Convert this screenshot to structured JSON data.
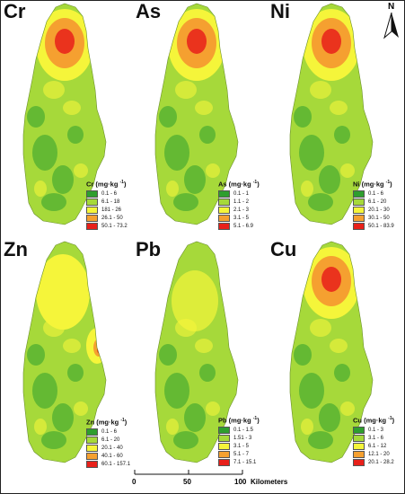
{
  "colors": [
    "#2e9e2e",
    "#a6d93a",
    "#f5f53a",
    "#f5a030",
    "#e8201a"
  ],
  "panels": [
    {
      "element": "Cr",
      "legend_title": "Cr (mg·kg",
      "legend_ranges": [
        "0.1 - 6",
        "6.1 - 18",
        "181 - 26",
        "26.1 - 50",
        "50.1 - 73.2"
      ],
      "hotspot": "north"
    },
    {
      "element": "As",
      "legend_title": "As (mg·kg",
      "legend_ranges": [
        "0.1 - 1",
        "1.1 - 2",
        "2.1 - 3",
        "3.1 - 5",
        "5.1 - 6.9"
      ],
      "hotspot": "north"
    },
    {
      "element": "Ni",
      "legend_title": "Ni (mg·kg",
      "legend_ranges": [
        "0.1 - 6",
        "6.1 - 20",
        "20.1 - 30",
        "30.1 - 50",
        "50.1 - 83.9"
      ],
      "hotspot": "north"
    },
    {
      "element": "Zn",
      "legend_title": "Zn (mg·kg",
      "legend_ranges": [
        "0.1 - 6",
        "6.1 - 20",
        "20.1 - 40",
        "40.1 - 60",
        "60.1 - 157.1"
      ],
      "hotspot": "east"
    },
    {
      "element": "Pb",
      "legend_title": "Pb (mg·kg",
      "legend_ranges": [
        "0.1 - 1.5",
        "1.51 - 3",
        "3.1 - 5",
        "5.1 - 7",
        "7.1 - 15.1"
      ],
      "hotspot": "none"
    },
    {
      "element": "Cu",
      "legend_title": "Cu (mg·kg",
      "legend_ranges": [
        "0.1 - 3",
        "3.1 - 6",
        "6.1 - 12",
        "12.1 - 20",
        "20.1 - 28.2"
      ],
      "hotspot": "north"
    }
  ],
  "unit_superscript": "-1",
  "north_arrow": {
    "label": "N",
    "icon": "north-arrow-icon"
  },
  "scale_bar": {
    "ticks": [
      "0",
      "50",
      "100"
    ],
    "unit": "Kilometers"
  }
}
